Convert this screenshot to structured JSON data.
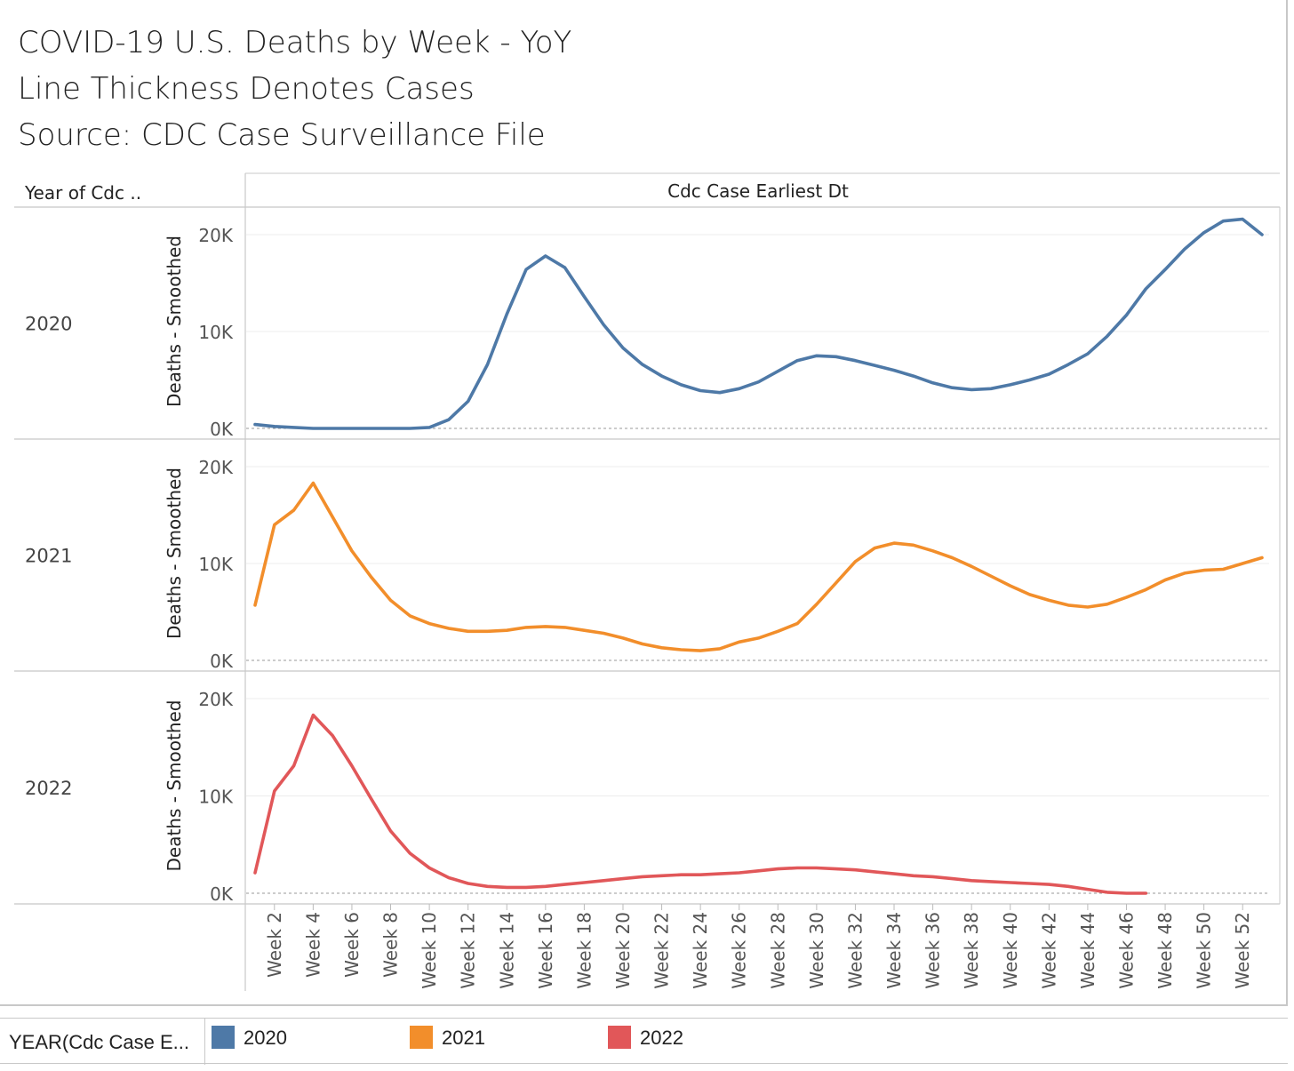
{
  "title_lines": [
    "COVID-19 U.S. Deaths by Week - YoY",
    "Line Thickness Denotes Cases",
    "Source: CDC Case Surveillance File"
  ],
  "row_header": "Year of Cdc ..",
  "column_header": "Cdc Case Earliest Dt",
  "legend": {
    "title": "YEAR(Cdc Case E...",
    "items": [
      {
        "label": "2020",
        "color": "#4e79a7"
      },
      {
        "label": "2021",
        "color": "#f28e2b"
      },
      {
        "label": "2022",
        "color": "#e15759"
      }
    ]
  },
  "chart_data": {
    "type": "line",
    "title": "COVID-19 U.S. Deaths by Week - YoY",
    "xlabel": "",
    "ylabel": "Deaths - Smoothed",
    "ylim": [
      0,
      22000
    ],
    "yticks": [
      0,
      10000,
      20000
    ],
    "ytick_labels": [
      "0K",
      "10K",
      "20K"
    ],
    "x_ticks": [
      2,
      4,
      6,
      8,
      10,
      12,
      14,
      16,
      18,
      20,
      22,
      24,
      26,
      28,
      30,
      32,
      34,
      36,
      38,
      40,
      42,
      44,
      46,
      48,
      50,
      52
    ],
    "x_tick_labels": [
      "Week 2",
      "Week 4",
      "Week 6",
      "Week 8",
      "Week 10",
      "Week 12",
      "Week 14",
      "Week 16",
      "Week 18",
      "Week 20",
      "Week 22",
      "Week 24",
      "Week 26",
      "Week 28",
      "Week 30",
      "Week 32",
      "Week 34",
      "Week 36",
      "Week 38",
      "Week 40",
      "Week 42",
      "Week 44",
      "Week 46",
      "Week 48",
      "Week 50",
      "Week 52"
    ],
    "x_range": [
      1,
      53
    ],
    "grid": true,
    "legend_position": "bottom",
    "series": [
      {
        "name": "2020",
        "color": "#4e79a7",
        "x": [
          1,
          2,
          3,
          4,
          5,
          6,
          7,
          8,
          9,
          10,
          11,
          12,
          13,
          14,
          15,
          16,
          17,
          18,
          19,
          20,
          21,
          22,
          23,
          24,
          25,
          26,
          27,
          28,
          29,
          30,
          31,
          32,
          33,
          34,
          35,
          36,
          37,
          38,
          39,
          40,
          41,
          42,
          43,
          44,
          45,
          46,
          47,
          48,
          49,
          50,
          51,
          52,
          53
        ],
        "y": [
          400,
          200,
          100,
          0,
          0,
          0,
          0,
          0,
          0,
          100,
          900,
          2800,
          6600,
          11800,
          16400,
          17800,
          16600,
          13600,
          10700,
          8300,
          6600,
          5400,
          4500,
          3900,
          3700,
          4100,
          4800,
          5900,
          7000,
          7500,
          7400,
          7000,
          6500,
          6000,
          5400,
          4700,
          4200,
          4000,
          4100,
          4500,
          5000,
          5600,
          6600,
          7700,
          9500,
          11700,
          14400,
          16400,
          18500,
          20200,
          21400,
          21600,
          20000
        ]
      },
      {
        "name": "2021",
        "color": "#f28e2b",
        "x": [
          1,
          2,
          3,
          4,
          5,
          6,
          7,
          8,
          9,
          10,
          11,
          12,
          13,
          14,
          15,
          16,
          17,
          18,
          19,
          20,
          21,
          22,
          23,
          24,
          25,
          26,
          27,
          28,
          29,
          30,
          31,
          32,
          33,
          34,
          35,
          36,
          37,
          38,
          39,
          40,
          41,
          42,
          43,
          44,
          45,
          46,
          47,
          48,
          49,
          50,
          51,
          52,
          53
        ],
        "y": [
          5700,
          14000,
          15500,
          18300,
          14800,
          11300,
          8600,
          6200,
          4600,
          3800,
          3300,
          3000,
          3000,
          3100,
          3400,
          3500,
          3400,
          3100,
          2800,
          2300,
          1700,
          1300,
          1100,
          1000,
          1200,
          1900,
          2300,
          3000,
          3800,
          5800,
          8000,
          10200,
          11600,
          12100,
          11900,
          11300,
          10600,
          9700,
          8700,
          7700,
          6800,
          6200,
          5700,
          5500,
          5800,
          6500,
          7300,
          8300,
          9000,
          9300,
          9400,
          10000,
          10600
        ]
      },
      {
        "name": "2022",
        "color": "#e15759",
        "x": [
          1,
          2,
          3,
          4,
          5,
          6,
          7,
          8,
          9,
          10,
          11,
          12,
          13,
          14,
          15,
          16,
          17,
          18,
          19,
          20,
          21,
          22,
          23,
          24,
          25,
          26,
          27,
          28,
          29,
          30,
          31,
          32,
          33,
          34,
          35,
          36,
          37,
          38,
          39,
          40,
          41,
          42,
          43,
          44,
          45,
          46,
          47
        ],
        "y": [
          2100,
          10500,
          13100,
          18300,
          16200,
          13100,
          9700,
          6400,
          4100,
          2600,
          1600,
          1000,
          700,
          600,
          600,
          700,
          900,
          1100,
          1300,
          1500,
          1700,
          1800,
          1900,
          1900,
          2000,
          2100,
          2300,
          2500,
          2600,
          2600,
          2500,
          2400,
          2200,
          2000,
          1800,
          1700,
          1500,
          1300,
          1200,
          1100,
          1000,
          900,
          700,
          400,
          100,
          0,
          0
        ]
      }
    ]
  }
}
